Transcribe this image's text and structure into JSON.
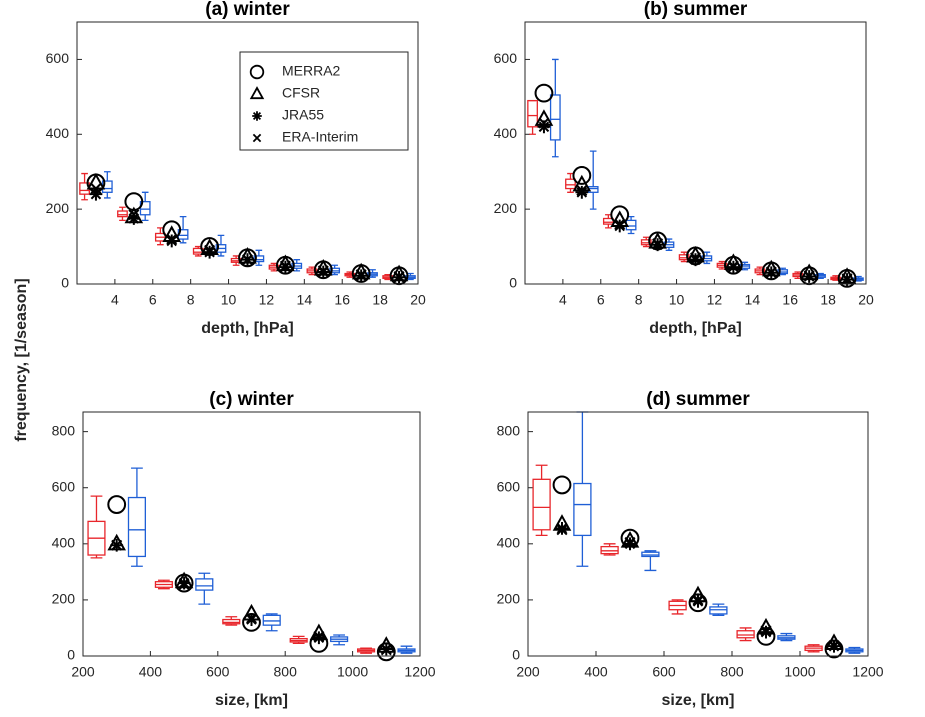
{
  "ylabel": "frequency, [1/season]",
  "chart_data": [
    {
      "type": "box",
      "title": "(a) winter",
      "xlabel": "depth, [hPa]",
      "xlim": [
        2,
        20
      ],
      "xticks": [
        4,
        6,
        8,
        10,
        12,
        14,
        16,
        18,
        20
      ],
      "ylim": [
        0,
        700
      ],
      "yticks": [
        0,
        200,
        400,
        600
      ],
      "x": [
        3,
        5,
        7,
        9,
        11,
        13,
        15,
        17,
        19
      ],
      "boxes": [
        {
          "color": "#e8262b",
          "whisker_low": [
            225,
            170,
            105,
            75,
            50,
            35,
            25,
            18,
            12
          ],
          "q1": [
            240,
            180,
            115,
            80,
            58,
            40,
            30,
            22,
            15
          ],
          "median": [
            250,
            185,
            125,
            85,
            62,
            45,
            35,
            25,
            18
          ],
          "q3": [
            270,
            195,
            135,
            95,
            68,
            50,
            40,
            28,
            22
          ],
          "whisker_high": [
            295,
            205,
            150,
            100,
            75,
            55,
            45,
            32,
            25
          ]
        },
        {
          "color": "#1f5fd6",
          "whisker_low": [
            230,
            170,
            110,
            75,
            50,
            35,
            25,
            18,
            12
          ],
          "q1": [
            245,
            185,
            120,
            85,
            60,
            42,
            30,
            22,
            15
          ],
          "median": [
            255,
            200,
            130,
            95,
            65,
            48,
            35,
            26,
            18
          ],
          "q3": [
            275,
            220,
            145,
            105,
            75,
            55,
            42,
            30,
            22
          ],
          "whisker_high": [
            300,
            245,
            180,
            130,
            90,
            65,
            50,
            38,
            28
          ]
        }
      ],
      "series": [
        {
          "name": "MERRA2",
          "marker": "circle",
          "values": [
            270,
            220,
            145,
            100,
            70,
            50,
            38,
            28,
            22
          ]
        },
        {
          "name": "CFSR",
          "marker": "triangle",
          "values": [
            270,
            180,
            130,
            95,
            72,
            52,
            40,
            30,
            25
          ]
        },
        {
          "name": "JRA55",
          "marker": "asterisk",
          "values": [
            240,
            175,
            115,
            85,
            65,
            45,
            32,
            22,
            18
          ]
        },
        {
          "name": "ERA-Interim",
          "marker": "x",
          "values": [
            255,
            185,
            120,
            90,
            65,
            48,
            35,
            25,
            20
          ]
        }
      ],
      "legend": "upper right"
    },
    {
      "type": "box",
      "title": "(b) summer",
      "xlabel": "depth, [hPa]",
      "xlim": [
        2,
        20
      ],
      "xticks": [
        4,
        6,
        8,
        10,
        12,
        14,
        16,
        18,
        20
      ],
      "ylim": [
        0,
        700
      ],
      "yticks": [
        0,
        200,
        400,
        600
      ],
      "x": [
        3,
        5,
        7,
        9,
        11,
        13,
        15,
        17,
        19
      ],
      "boxes": [
        {
          "color": "#e8262b",
          "whisker_low": [
            400,
            245,
            150,
            100,
            60,
            40,
            25,
            15,
            10
          ],
          "q1": [
            420,
            255,
            160,
            105,
            65,
            45,
            30,
            20,
            12
          ],
          "median": [
            450,
            265,
            165,
            110,
            70,
            50,
            35,
            24,
            15
          ],
          "q3": [
            490,
            280,
            175,
            118,
            78,
            55,
            40,
            28,
            18
          ],
          "whisker_high": [
            490,
            295,
            185,
            125,
            85,
            60,
            45,
            32,
            22
          ]
        },
        {
          "color": "#1f5fd6",
          "whisker_low": [
            340,
            200,
            135,
            90,
            55,
            38,
            25,
            15,
            8
          ],
          "q1": [
            385,
            245,
            145,
            98,
            62,
            42,
            28,
            18,
            10
          ],
          "median": [
            440,
            255,
            155,
            105,
            68,
            48,
            32,
            22,
            13
          ],
          "q3": [
            505,
            260,
            170,
            112,
            75,
            52,
            38,
            25,
            16
          ],
          "whisker_high": [
            600,
            355,
            180,
            120,
            85,
            58,
            42,
            28,
            20
          ]
        }
      ],
      "series": [
        {
          "marker": "circle",
          "values": [
            510,
            290,
            185,
            115,
            75,
            50,
            35,
            22,
            15
          ]
        },
        {
          "marker": "triangle",
          "values": [
            440,
            265,
            170,
            112,
            75,
            55,
            38,
            28,
            18
          ]
        },
        {
          "marker": "asterisk",
          "values": [
            420,
            245,
            155,
            105,
            65,
            45,
            30,
            20,
            12
          ]
        },
        {
          "marker": "x",
          "values": [
            430,
            250,
            160,
            108,
            70,
            48,
            32,
            22,
            14
          ]
        }
      ]
    },
    {
      "type": "box",
      "title": "(c) winter",
      "xlabel": "size, [km]",
      "xlim": [
        200,
        1200
      ],
      "xticks": [
        200,
        400,
        600,
        800,
        1000,
        1200
      ],
      "ylim": [
        0,
        870
      ],
      "yticks": [
        0,
        200,
        400,
        600,
        800
      ],
      "x": [
        300,
        500,
        700,
        900,
        1100
      ],
      "boxes": [
        {
          "color": "#e8262b",
          "whisker_low": [
            350,
            240,
            110,
            45,
            10
          ],
          "q1": [
            360,
            245,
            115,
            50,
            15
          ],
          "median": [
            420,
            255,
            120,
            55,
            20
          ],
          "q3": [
            480,
            265,
            130,
            62,
            25
          ],
          "whisker_high": [
            570,
            270,
            140,
            70,
            28
          ]
        },
        {
          "color": "#1f5fd6",
          "whisker_low": [
            320,
            185,
            90,
            40,
            10
          ],
          "q1": [
            355,
            235,
            110,
            52,
            15
          ],
          "median": [
            450,
            250,
            125,
            60,
            20
          ],
          "q3": [
            565,
            275,
            145,
            68,
            25
          ],
          "whisker_high": [
            670,
            295,
            150,
            75,
            35
          ]
        }
      ],
      "series": [
        {
          "marker": "circle",
          "values": [
            540,
            260,
            120,
            45,
            15
          ]
        },
        {
          "marker": "triangle",
          "values": [
            400,
            265,
            150,
            80,
            35
          ]
        },
        {
          "marker": "asterisk",
          "values": [
            395,
            260,
            130,
            65,
            25
          ]
        },
        {
          "marker": "x",
          "values": [
            395,
            255,
            135,
            70,
            22
          ]
        }
      ]
    },
    {
      "type": "box",
      "title": "(d) summer",
      "xlabel": "size, [km]",
      "xlim": [
        200,
        1200
      ],
      "xticks": [
        200,
        400,
        600,
        800,
        1000,
        1200
      ],
      "ylim": [
        0,
        870
      ],
      "yticks": [
        0,
        200,
        400,
        600,
        800
      ],
      "x": [
        300,
        500,
        700,
        900,
        1100
      ],
      "boxes": [
        {
          "color": "#e8262b",
          "whisker_low": [
            430,
            360,
            150,
            55,
            15
          ],
          "q1": [
            450,
            365,
            165,
            65,
            20
          ],
          "median": [
            530,
            375,
            180,
            75,
            28
          ],
          "q3": [
            630,
            390,
            195,
            90,
            35
          ],
          "whisker_high": [
            680,
            400,
            200,
            100,
            40
          ]
        },
        {
          "color": "#1f5fd6",
          "whisker_low": [
            320,
            305,
            145,
            55,
            10
          ],
          "q1": [
            430,
            355,
            150,
            60,
            15
          ],
          "median": [
            540,
            360,
            165,
            65,
            20
          ],
          "q3": [
            615,
            370,
            175,
            72,
            25
          ],
          "whisker_high": [
            870,
            375,
            185,
            80,
            30
          ]
        }
      ],
      "series": [
        {
          "marker": "circle",
          "values": [
            610,
            420,
            190,
            70,
            25
          ]
        },
        {
          "marker": "triangle",
          "values": [
            470,
            410,
            215,
            100,
            45
          ]
        },
        {
          "marker": "asterisk",
          "values": [
            455,
            400,
            195,
            85,
            35
          ]
        },
        {
          "marker": "x",
          "values": [
            450,
            405,
            200,
            90,
            38
          ]
        }
      ]
    }
  ]
}
